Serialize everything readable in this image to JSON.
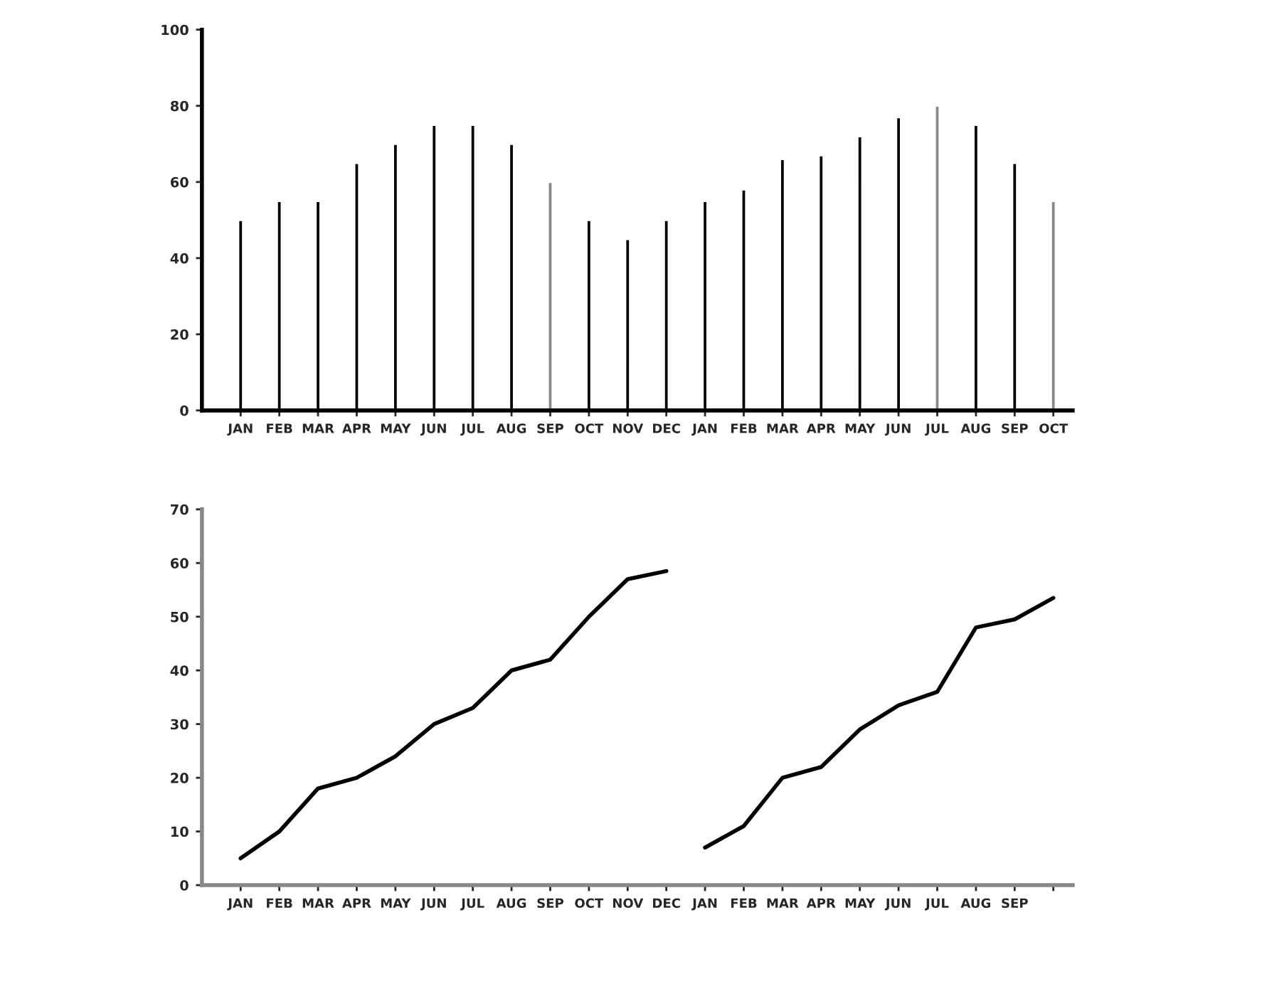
{
  "chart_data": [
    {
      "type": "bar",
      "categories": [
        "JAN",
        "FEB",
        "MAR",
        "APR",
        "MAY",
        "JUN",
        "JUL",
        "AUG",
        "SEP",
        "OCT",
        "NOV",
        "DEC",
        "JAN",
        "FEB",
        "MAR",
        "APR",
        "MAY",
        "JUN",
        "JUL",
        "AUG",
        "SEP",
        "OCT"
      ],
      "values": [
        50,
        55,
        55,
        65,
        70,
        75,
        75,
        70,
        60,
        50,
        45,
        50,
        55,
        58,
        66,
        67,
        72,
        77,
        80,
        75,
        65,
        55
      ],
      "colors": [
        "#000000",
        "#000000",
        "#000000",
        "#000000",
        "#000000",
        "#000000",
        "#000000",
        "#000000",
        "#888888",
        "#000000",
        "#000000",
        "#000000",
        "#000000",
        "#000000",
        "#000000",
        "#000000",
        "#000000",
        "#000000",
        "#888888",
        "#000000",
        "#000000",
        "#888888"
      ],
      "ylim": [
        0,
        100
      ],
      "yticks": [
        0,
        20,
        40,
        60,
        80,
        100
      ],
      "grid": false,
      "legend": false
    },
    {
      "type": "line",
      "categories": [
        "JAN",
        "FEB",
        "MAR",
        "APR",
        "MAY",
        "JUN",
        "JUL",
        "AUG",
        "SEP",
        "OCT",
        "NOV",
        "DEC",
        "JAN",
        "FEB",
        "MAR",
        "APR",
        "MAY",
        "JUN",
        "JUL",
        "AUG",
        "SEP",
        null
      ],
      "series": [
        {
          "color": "#000000",
          "values": [
            5,
            10,
            18,
            20,
            24,
            30,
            33,
            40,
            42,
            50,
            57,
            58.5,
            null,
            null,
            null,
            null,
            null,
            null,
            null,
            null,
            null,
            null
          ]
        },
        {
          "color": "#000000",
          "values": [
            null,
            null,
            null,
            null,
            null,
            null,
            null,
            null,
            null,
            null,
            null,
            null,
            7,
            11,
            20,
            22,
            29,
            33.5,
            36,
            48,
            49.5,
            53.5
          ]
        }
      ],
      "ylim": [
        0,
        70
      ],
      "yticks": [
        0,
        10,
        20,
        30,
        40,
        50,
        60,
        70
      ],
      "grid": false,
      "legend": false,
      "marker": "none",
      "line_style": "solid"
    }
  ]
}
